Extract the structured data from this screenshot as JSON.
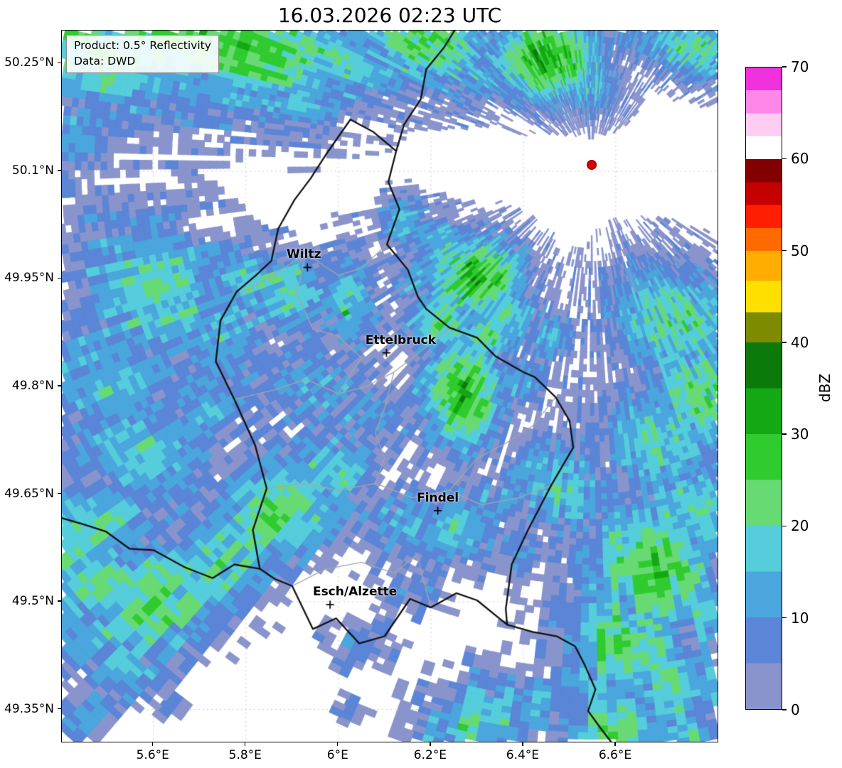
{
  "title": "16.03.2026 02:23 UTC",
  "info_box": {
    "line1": "Product: 0.5° Reflectivity",
    "line2": "Data: DWD"
  },
  "colorbar": {
    "label": "dBZ",
    "min": 0,
    "max": 70,
    "ticks": [
      0,
      10,
      20,
      30,
      40,
      50,
      60,
      70
    ],
    "segments": [
      {
        "to": 5,
        "c": "#8a94cc"
      },
      {
        "to": 10,
        "c": "#5b85d6"
      },
      {
        "to": 15,
        "c": "#4aa6dd"
      },
      {
        "to": 20,
        "c": "#55cdda"
      },
      {
        "to": 25,
        "c": "#68da74"
      },
      {
        "to": 30,
        "c": "#2fcb2f"
      },
      {
        "to": 35,
        "c": "#14a814"
      },
      {
        "to": 40,
        "c": "#0b7a0b"
      },
      {
        "to": 43.3,
        "c": "#7c8b00"
      },
      {
        "to": 46.7,
        "c": "#ffdf00"
      },
      {
        "to": 50,
        "c": "#ffad00"
      },
      {
        "to": 52.5,
        "c": "#ff6a00"
      },
      {
        "to": 55,
        "c": "#ff1f00"
      },
      {
        "to": 57.5,
        "c": "#c40000"
      },
      {
        "to": 60,
        "c": "#830000"
      },
      {
        "to": 62.5,
        "c": "#ffffff"
      },
      {
        "to": 65,
        "c": "#ffccf2"
      },
      {
        "to": 67.5,
        "c": "#ff87e8"
      },
      {
        "to": 70,
        "c": "#ee30dd"
      }
    ]
  },
  "map": {
    "bounds": {
      "lon_min": 5.402,
      "lon_max": 6.82,
      "lat_min": 49.305,
      "lat_max": 50.296
    },
    "x_ticks": [
      {
        "v": 5.6,
        "label": "5.6°E"
      },
      {
        "v": 5.8,
        "label": "5.8°E"
      },
      {
        "v": 6.0,
        "label": "6°E"
      },
      {
        "v": 6.2,
        "label": "6.2°E"
      },
      {
        "v": 6.4,
        "label": "6.4°E"
      },
      {
        "v": 6.6,
        "label": "6.6°E"
      }
    ],
    "y_ticks": [
      {
        "v": 50.25,
        "label": "50.25°N"
      },
      {
        "v": 50.1,
        "label": "50.1°N"
      },
      {
        "v": 49.95,
        "label": "49.95°N"
      },
      {
        "v": 49.8,
        "label": "49.8°N"
      },
      {
        "v": 49.65,
        "label": "49.65°N"
      },
      {
        "v": 49.5,
        "label": "49.5°N"
      },
      {
        "v": 49.35,
        "label": "49.35°N"
      }
    ],
    "grid": {
      "color": "#c9c9c9",
      "dash": [
        2,
        4
      ]
    },
    "cities": [
      {
        "name": "Wiltz",
        "lon": 5.933,
        "lat": 49.966,
        "dx": -5
      },
      {
        "name": "Ettelbruck",
        "lon": 6.104,
        "lat": 49.847,
        "dx": 20
      },
      {
        "name": "Findel",
        "lon": 6.215,
        "lat": 49.627,
        "dx": 0
      },
      {
        "name": "Esch/Alzette",
        "lon": 5.982,
        "lat": 49.496,
        "dx": 35
      }
    ],
    "radar_site": {
      "lon": 6.548,
      "lat": 50.109,
      "color": "#d60000"
    },
    "borders": {
      "country_color": "#111111",
      "admin_color": "#a6a6a6",
      "country": [
        [
          [
            6.026,
            50.172
          ],
          [
            6.075,
            50.155
          ],
          [
            6.125,
            50.128
          ],
          [
            6.108,
            50.085
          ],
          [
            6.132,
            50.047
          ],
          [
            6.105,
            49.998
          ],
          [
            6.15,
            49.963
          ],
          [
            6.172,
            49.925
          ],
          [
            6.19,
            49.908
          ],
          [
            6.24,
            49.882
          ],
          [
            6.3,
            49.868
          ],
          [
            6.34,
            49.842
          ],
          [
            6.4,
            49.82
          ],
          [
            6.425,
            49.813
          ],
          [
            6.47,
            49.785
          ],
          [
            6.5,
            49.752
          ],
          [
            6.508,
            49.715
          ],
          [
            6.46,
            49.662
          ],
          [
            6.41,
            49.6
          ],
          [
            6.375,
            49.552
          ],
          [
            6.362,
            49.49
          ],
          [
            6.365,
            49.468
          ],
          [
            6.3,
            49.502
          ],
          [
            6.255,
            49.512
          ],
          [
            6.2,
            49.492
          ],
          [
            6.155,
            49.504
          ],
          [
            6.1,
            49.452
          ],
          [
            6.045,
            49.442
          ],
          [
            5.995,
            49.477
          ],
          [
            5.945,
            49.462
          ],
          [
            5.9,
            49.522
          ],
          [
            5.862,
            49.532
          ],
          [
            5.83,
            49.546
          ],
          [
            5.815,
            49.6
          ],
          [
            5.845,
            49.658
          ],
          [
            5.82,
            49.718
          ],
          [
            5.775,
            49.782
          ],
          [
            5.735,
            49.835
          ],
          [
            5.745,
            49.892
          ],
          [
            5.78,
            49.932
          ],
          [
            5.822,
            49.955
          ],
          [
            5.855,
            49.975
          ],
          [
            5.87,
            50.02
          ],
          [
            5.905,
            50.06
          ],
          [
            5.94,
            50.09
          ],
          [
            5.975,
            50.125
          ],
          [
            6.026,
            50.172
          ]
        ],
        [
          [
            6.125,
            50.128
          ],
          [
            6.142,
            50.165
          ],
          [
            6.178,
            50.2
          ],
          [
            6.19,
            50.242
          ],
          [
            6.228,
            50.272
          ],
          [
            6.255,
            50.3
          ]
        ],
        [
          [
            5.83,
            49.546
          ],
          [
            5.775,
            49.552
          ],
          [
            5.728,
            49.533
          ],
          [
            5.668,
            49.548
          ],
          [
            5.6,
            49.572
          ],
          [
            5.548,
            49.574
          ],
          [
            5.497,
            49.598
          ],
          [
            5.448,
            49.608
          ],
          [
            5.4,
            49.617
          ]
        ],
        [
          [
            6.365,
            49.468
          ],
          [
            6.42,
            49.458
          ],
          [
            6.472,
            49.452
          ],
          [
            6.512,
            49.438
          ],
          [
            6.532,
            49.413
          ],
          [
            6.556,
            49.378
          ],
          [
            6.54,
            49.348
          ],
          [
            6.568,
            49.323
          ],
          [
            6.592,
            49.303
          ]
        ]
      ],
      "admin": [
        [
          [
            5.79,
            49.93
          ],
          [
            5.87,
            49.96
          ],
          [
            5.93,
            49.985
          ],
          [
            6.0,
            49.955
          ],
          [
            6.05,
            49.965
          ],
          [
            6.105,
            49.998
          ]
        ],
        [
          [
            5.775,
            49.782
          ],
          [
            5.86,
            49.795
          ],
          [
            5.93,
            49.81
          ],
          [
            6.0,
            49.79
          ],
          [
            6.06,
            49.8
          ],
          [
            6.12,
            49.82
          ],
          [
            6.19,
            49.855
          ],
          [
            6.24,
            49.882
          ]
        ],
        [
          [
            5.845,
            49.658
          ],
          [
            5.93,
            49.665
          ],
          [
            6.0,
            49.655
          ],
          [
            6.08,
            49.665
          ],
          [
            6.16,
            49.645
          ],
          [
            6.24,
            49.655
          ],
          [
            6.31,
            49.635
          ],
          [
            6.39,
            49.645
          ],
          [
            6.46,
            49.662
          ]
        ],
        [
          [
            5.9,
            49.522
          ],
          [
            5.97,
            49.545
          ],
          [
            6.05,
            49.555
          ],
          [
            6.12,
            49.54
          ],
          [
            6.17,
            49.565
          ],
          [
            6.2,
            49.492
          ]
        ],
        [
          [
            6.24,
            49.655
          ],
          [
            6.3,
            49.7
          ],
          [
            6.36,
            49.72
          ],
          [
            6.42,
            49.745
          ],
          [
            6.47,
            49.785
          ]
        ],
        [
          [
            5.93,
            49.985
          ],
          [
            5.91,
            49.93
          ],
          [
            5.945,
            49.88
          ],
          [
            6.0,
            49.87
          ],
          [
            6.05,
            49.84
          ],
          [
            6.0,
            49.79
          ]
        ],
        [
          [
            6.12,
            49.82
          ],
          [
            6.1,
            49.77
          ],
          [
            6.08,
            49.735
          ],
          [
            6.1,
            49.7
          ],
          [
            6.08,
            49.665
          ]
        ]
      ]
    }
  },
  "echoes": {
    "seed": 3,
    "cells": [
      [
        5.44,
        50.28,
        22,
        11,
        -15,
        26
      ],
      [
        5.63,
        50.3,
        18,
        9,
        -10,
        31
      ],
      [
        5.82,
        50.27,
        16,
        10,
        -20,
        30
      ],
      [
        5.98,
        50.26,
        10,
        7,
        -20,
        22
      ],
      [
        5.42,
        50.16,
        7,
        9,
        0,
        14
      ],
      [
        5.45,
        50.04,
        5,
        4,
        0,
        10
      ],
      [
        6.19,
        50.28,
        11,
        8,
        -10,
        27
      ],
      [
        6.3,
        50.23,
        7,
        5,
        0,
        16
      ],
      [
        6.45,
        50.26,
        9,
        7,
        0,
        35
      ],
      [
        6.54,
        50.22,
        6,
        5,
        0,
        18
      ],
      [
        6.77,
        50.27,
        9,
        5,
        -20,
        24
      ],
      [
        6.63,
        50.29,
        5,
        4,
        0,
        14
      ],
      [
        6.3,
        49.95,
        8,
        7,
        0,
        33
      ],
      [
        6.22,
        50.0,
        5,
        5,
        0,
        18
      ],
      [
        6.14,
        50.03,
        4,
        4,
        0,
        20
      ],
      [
        6.285,
        49.972,
        0.9,
        0.9,
        0,
        44
      ],
      [
        6.36,
        49.9,
        6,
        5,
        0,
        22
      ],
      [
        6.32,
        49.87,
        5,
        4,
        0,
        26
      ],
      [
        5.6,
        49.93,
        16,
        12,
        -35,
        21
      ],
      [
        5.5,
        49.82,
        13,
        11,
        0,
        18
      ],
      [
        5.74,
        49.87,
        11,
        9,
        -35,
        17
      ],
      [
        5.89,
        49.93,
        7,
        6,
        0,
        25
      ],
      [
        5.58,
        49.7,
        15,
        11,
        -40,
        19
      ],
      [
        5.48,
        49.61,
        11,
        9,
        0,
        21
      ],
      [
        5.7,
        49.77,
        9,
        8,
        0,
        15
      ],
      [
        5.8,
        49.95,
        7,
        5,
        0,
        22
      ],
      [
        6.02,
        49.93,
        5,
        8,
        0,
        19
      ],
      [
        5.96,
        49.8,
        9,
        7,
        0,
        16
      ],
      [
        6.07,
        49.76,
        7,
        5,
        0,
        14
      ],
      [
        6.27,
        49.79,
        7,
        9,
        0,
        33
      ],
      [
        6.22,
        49.89,
        6,
        5,
        0,
        27
      ],
      [
        6.37,
        49.81,
        6,
        4,
        0,
        18
      ],
      [
        6.45,
        49.87,
        5,
        4,
        0,
        16
      ],
      [
        6.012,
        49.902,
        0.8,
        0.8,
        0,
        42
      ],
      [
        6.16,
        49.95,
        4,
        4,
        0,
        16
      ],
      [
        5.46,
        49.54,
        11,
        9,
        25,
        22
      ],
      [
        5.6,
        49.5,
        13,
        9,
        30,
        27
      ],
      [
        5.74,
        49.56,
        11,
        9,
        30,
        24
      ],
      [
        5.87,
        49.63,
        11,
        9,
        30,
        26
      ],
      [
        5.97,
        49.68,
        9,
        7,
        30,
        21
      ],
      [
        5.54,
        49.42,
        9,
        7,
        0,
        17
      ],
      [
        5.42,
        49.47,
        7,
        7,
        0,
        18
      ],
      [
        5.44,
        49.35,
        6,
        5,
        0,
        12
      ],
      [
        6.12,
        49.61,
        9,
        6,
        0,
        16
      ],
      [
        6.24,
        49.6,
        9,
        6,
        0,
        19
      ],
      [
        6.33,
        49.64,
        7,
        5,
        0,
        14
      ],
      [
        6.4,
        49.57,
        7,
        5,
        0,
        12
      ],
      [
        6.47,
        49.66,
        9,
        7,
        -40,
        20
      ],
      [
        6.17,
        49.52,
        6,
        4,
        0,
        10
      ],
      [
        6.05,
        49.44,
        5,
        4,
        0,
        12
      ],
      [
        6.73,
        49.89,
        12,
        9,
        -30,
        23
      ],
      [
        6.8,
        49.79,
        11,
        9,
        0,
        25
      ],
      [
        6.69,
        49.72,
        11,
        9,
        -30,
        21
      ],
      [
        6.78,
        49.62,
        11,
        9,
        -20,
        23
      ],
      [
        6.68,
        49.55,
        11,
        11,
        -20,
        29
      ],
      [
        6.61,
        49.44,
        11,
        9,
        -20,
        27
      ],
      [
        6.73,
        49.38,
        9,
        7,
        0,
        23
      ],
      [
        6.6,
        49.32,
        9,
        7,
        0,
        25
      ],
      [
        6.54,
        49.39,
        7,
        7,
        0,
        18
      ],
      [
        6.81,
        49.92,
        7,
        5,
        0,
        18
      ],
      [
        6.82,
        49.48,
        7,
        7,
        0,
        21
      ],
      [
        6.75,
        49.3,
        8,
        6,
        0,
        22
      ],
      [
        6.3,
        49.33,
        9,
        7,
        10,
        23
      ],
      [
        6.39,
        49.36,
        7,
        5,
        0,
        18
      ],
      [
        6.21,
        49.305,
        5,
        4,
        0,
        13
      ],
      [
        6.03,
        49.35,
        2.5,
        2,
        0,
        8
      ]
    ]
  }
}
